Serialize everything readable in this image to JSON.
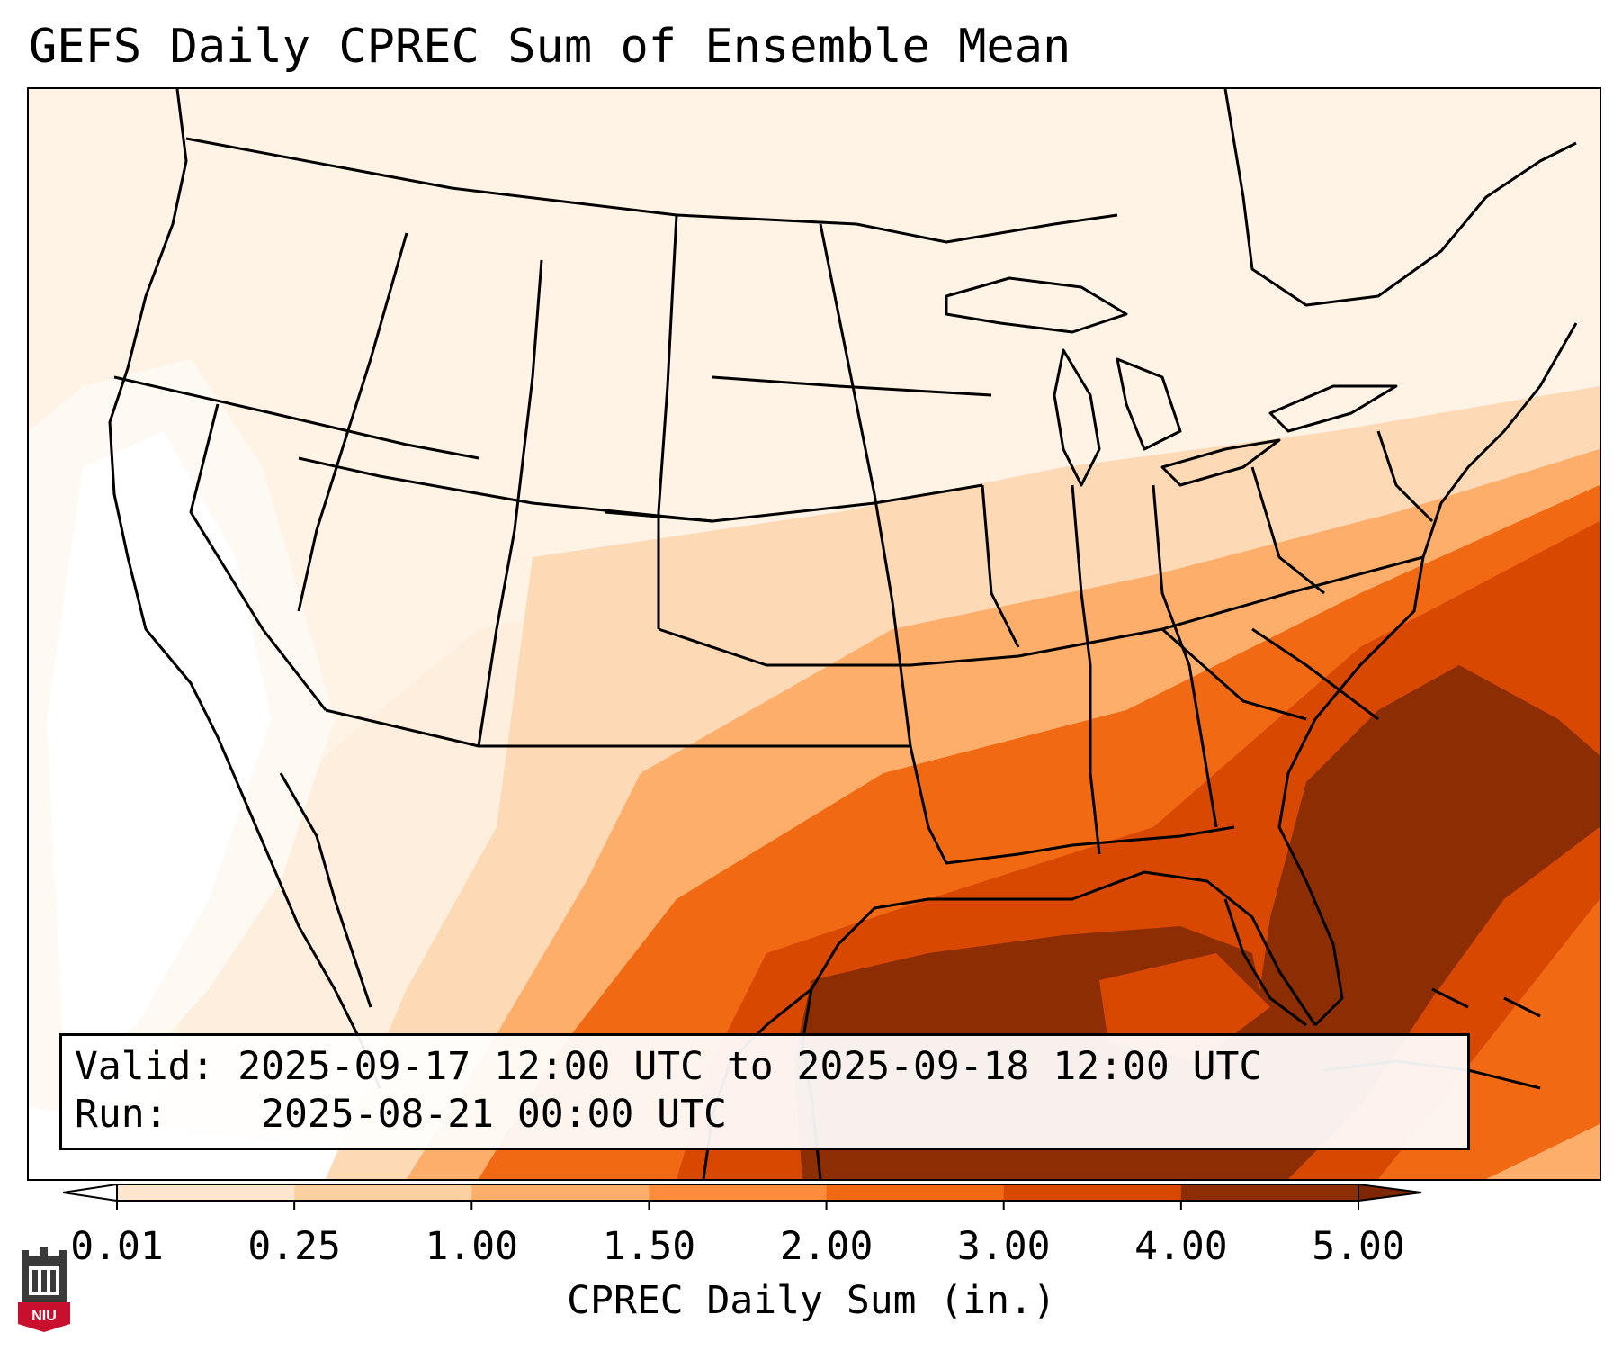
{
  "title": "GEFS Daily CPREC Sum of Ensemble Mean",
  "info": {
    "valid_label": "Valid:",
    "valid_value": "2025-09-17 12:00 UTC to 2025-09-18 12:00 UTC",
    "run_label": "Run:",
    "run_value": "2025-08-21 00:00 UTC"
  },
  "colorbar": {
    "label": "CPREC Daily Sum (in.)",
    "ticks": [
      "0.01",
      "0.25",
      "1.00",
      "1.50",
      "2.00",
      "3.00",
      "4.00",
      "5.00"
    ],
    "colors": [
      "#fff5eb",
      "#fee6ce",
      "#fdd0a2",
      "#fdae6b",
      "#fd8d3c",
      "#f16913",
      "#d94801",
      "#8c2d04"
    ],
    "under_color": "#ffffff",
    "over_color": "#7f2704"
  },
  "logo": {
    "text": "NIU",
    "icon": "niu-castle-logo-icon"
  }
}
